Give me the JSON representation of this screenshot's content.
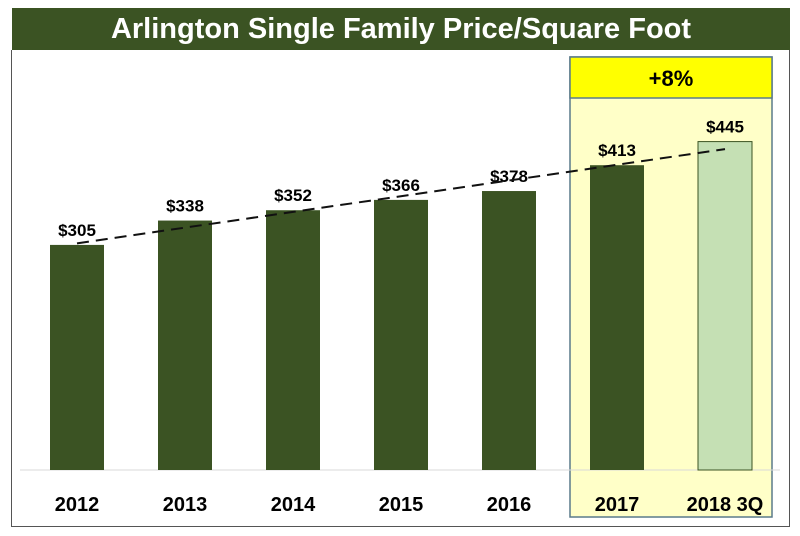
{
  "chart_data": {
    "type": "bar",
    "title": "Arlington Single Family Price/Square Foot",
    "categories": [
      "2012",
      "2013",
      "2014",
      "2015",
      "2016",
      "2017",
      "2018 3Q"
    ],
    "values": [
      305,
      338,
      352,
      366,
      378,
      413,
      445
    ],
    "labels": [
      "$305",
      "$338",
      "$352",
      "$366",
      "$378",
      "$413",
      "$445"
    ],
    "xlabel": "",
    "ylabel": "",
    "ylim": [
      0,
      600
    ],
    "grid": false,
    "highlight": {
      "categories": [
        "2017",
        "2018 3Q"
      ],
      "annotation": "+8%"
    },
    "trendline": {
      "style": "dashed",
      "type": "linear"
    },
    "colors": {
      "bar": "#3b5323",
      "last_bar": "#c5e0b4",
      "highlight_bg": "#ffffc8",
      "highlight_header": "#ffff00",
      "title_bg": "#3b5323"
    }
  }
}
